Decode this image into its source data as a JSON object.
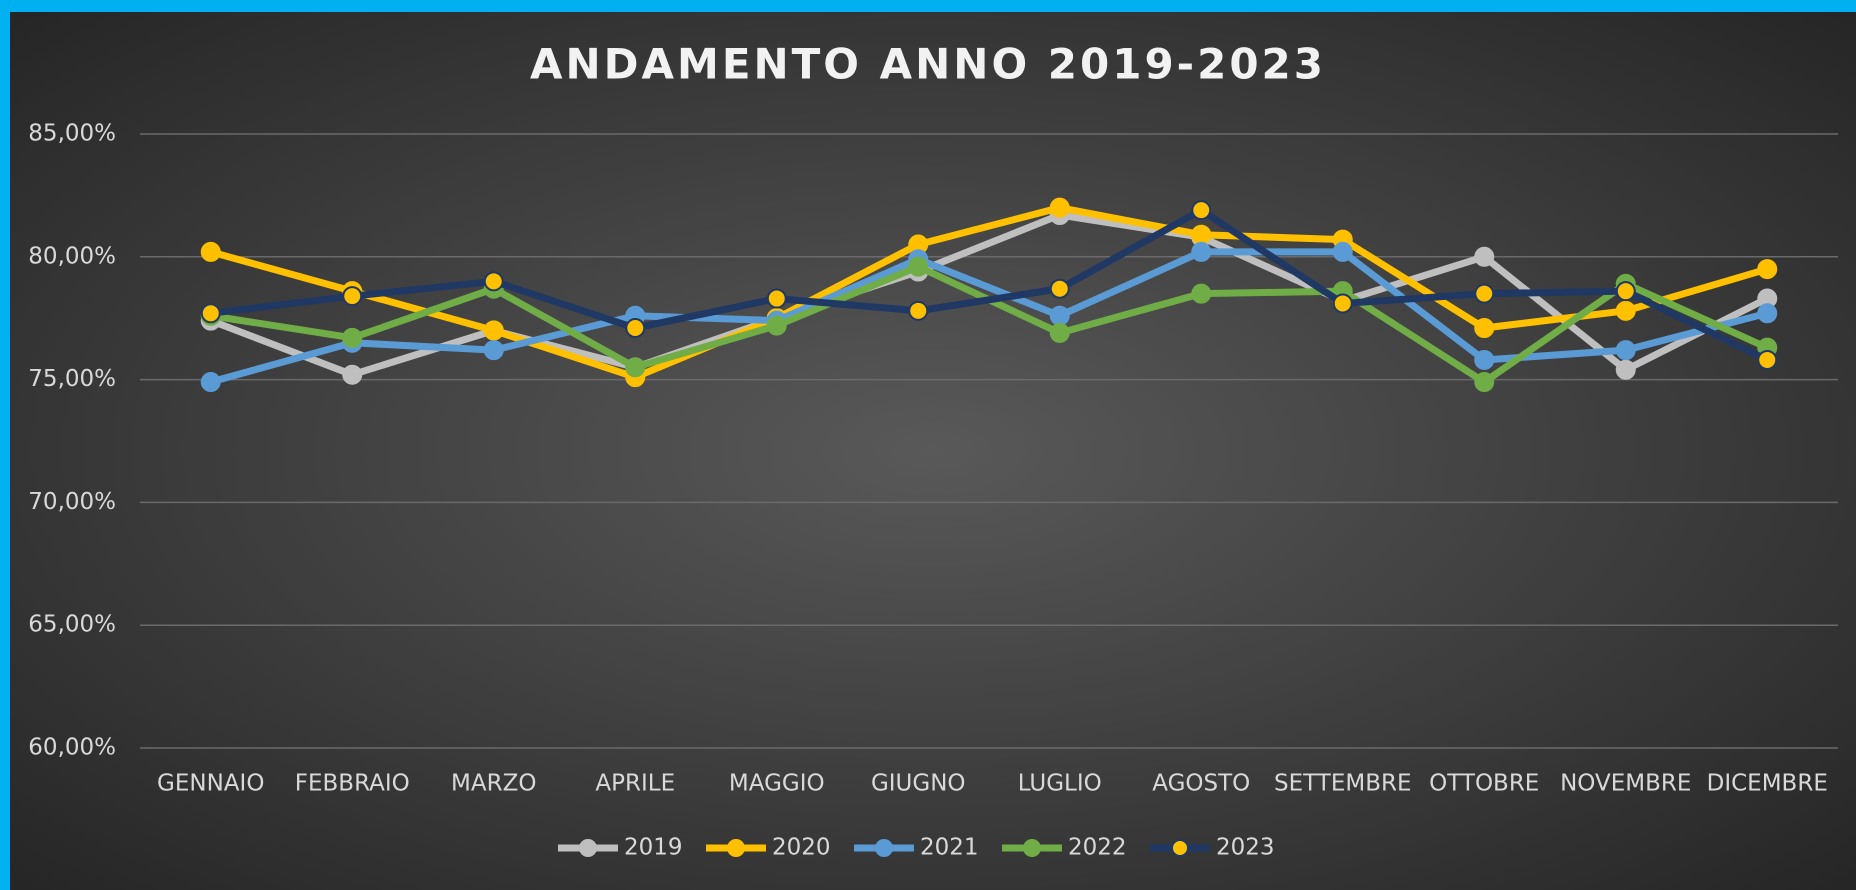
{
  "chart_data": {
    "type": "line",
    "title": "ANDAMENTO ANNO 2019-2023",
    "categories": [
      "GENNAIO",
      "FEBBRAIO",
      "MARZO",
      "APRILE",
      "MAGGIO",
      "GIUGNO",
      "LUGLIO",
      "AGOSTO",
      "SETTEMBRE",
      "OTTOBRE",
      "NOVEMBRE",
      "DICEMBRE"
    ],
    "series": [
      {
        "name": "2019",
        "color": "#bfbfbf",
        "values": [
          77.4,
          75.2,
          77.0,
          75.5,
          77.5,
          79.4,
          81.7,
          80.8,
          78.2,
          80.0,
          75.4,
          78.3
        ]
      },
      {
        "name": "2020",
        "color": "#ffc000",
        "values": [
          80.2,
          78.6,
          77.0,
          75.1,
          77.5,
          80.5,
          82.0,
          80.9,
          80.7,
          77.1,
          77.8,
          79.5
        ]
      },
      {
        "name": "2021",
        "color": "#5b9bd5",
        "values": [
          74.9,
          76.5,
          76.2,
          77.6,
          77.4,
          79.9,
          77.6,
          80.2,
          80.2,
          75.8,
          76.2,
          77.7
        ]
      },
      {
        "name": "2022",
        "color": "#70ad47",
        "values": [
          77.6,
          76.7,
          78.7,
          75.5,
          77.2,
          79.6,
          76.9,
          78.5,
          78.6,
          74.9,
          78.9,
          76.3
        ]
      },
      {
        "name": "2023",
        "color": "#203864",
        "marker_color": "#ffc000",
        "values": [
          77.7,
          78.4,
          79.0,
          77.1,
          78.3,
          77.8,
          78.7,
          81.9,
          78.1,
          78.5,
          78.6,
          75.8
        ]
      }
    ],
    "ylim": [
      60,
      85
    ],
    "yticks": [
      {
        "value": 60,
        "label": "60,00%"
      },
      {
        "value": 65,
        "label": "65,00%"
      },
      {
        "value": 70,
        "label": "70,00%"
      },
      {
        "value": 75,
        "label": "75,00%"
      },
      {
        "value": 80,
        "label": "80,00%"
      },
      {
        "value": 85,
        "label": "85,00%"
      }
    ],
    "grid": true,
    "legend": "bottom"
  }
}
